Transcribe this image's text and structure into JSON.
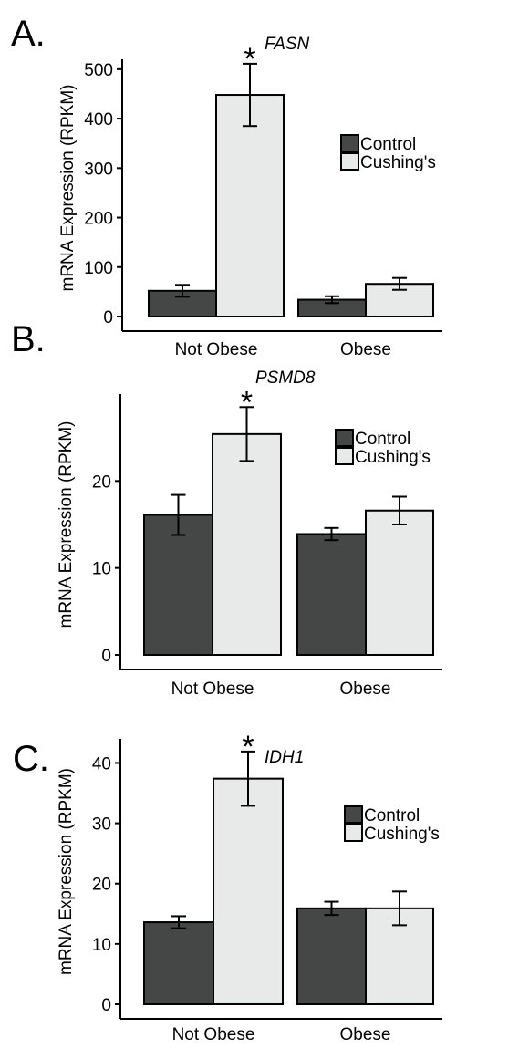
{
  "chart_data": [
    {
      "type": "bar",
      "panel": "A.",
      "title": "FASN",
      "ylabel": "mRNA Expression (RPKM)",
      "categories": [
        "Not Obese",
        "Obese"
      ],
      "ylim": [
        0,
        520
      ],
      "yticks": [
        0,
        100,
        200,
        300,
        400,
        500
      ],
      "series": [
        {
          "name": "Control",
          "color": "#454747",
          "values": [
            52,
            34
          ],
          "err": [
            12,
            7
          ]
        },
        {
          "name": "Cushing's",
          "color": "#e8eaea",
          "values": [
            448,
            66
          ],
          "err": [
            63,
            12
          ]
        }
      ],
      "significance": [
        {
          "category": 0,
          "series": 1,
          "mark": "*"
        }
      ],
      "legend_position": "right"
    },
    {
      "type": "bar",
      "panel": "B.",
      "title": "PSMD8",
      "ylabel": "mRNA Expression (RPKM)",
      "categories": [
        "Not Obese",
        "Obese"
      ],
      "ylim": [
        0,
        30
      ],
      "yticks": [
        0,
        10,
        20
      ],
      "series": [
        {
          "name": "Control",
          "color": "#454747",
          "values": [
            16.1,
            13.9
          ],
          "err": [
            2.3,
            0.7
          ]
        },
        {
          "name": "Cushing's",
          "color": "#e8eaea",
          "values": [
            25.4,
            16.6
          ],
          "err": [
            3.1,
            1.6
          ]
        }
      ],
      "significance": [
        {
          "category": 0,
          "series": 1,
          "mark": "*"
        }
      ],
      "legend_position": "right"
    },
    {
      "type": "bar",
      "panel": "C.",
      "title": "IDH1",
      "ylabel": "mRNA Expression (RPKM)",
      "categories": [
        "Not Obese",
        "Obese"
      ],
      "ylim": [
        0,
        44
      ],
      "yticks": [
        0,
        10,
        20,
        30,
        40
      ],
      "series": [
        {
          "name": "Control",
          "color": "#454747",
          "values": [
            13.6,
            15.9
          ],
          "err": [
            1.0,
            1.1
          ]
        },
        {
          "name": "Cushing's",
          "color": "#e8eaea",
          "values": [
            37.4,
            15.9
          ],
          "err": [
            4.5,
            2.8
          ]
        }
      ],
      "significance": [
        {
          "category": 0,
          "series": 1,
          "mark": "*"
        }
      ],
      "legend_position": "right"
    }
  ]
}
